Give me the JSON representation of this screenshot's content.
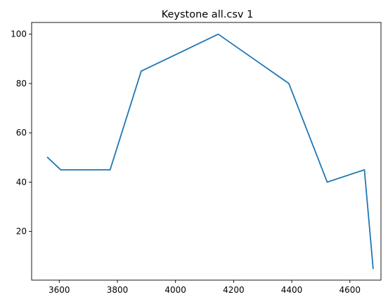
{
  "chart_data": {
    "type": "line",
    "title": "Keystone all.csv 1",
    "xlabel": "",
    "ylabel": "",
    "xlim": [
      3505,
      4707
    ],
    "ylim": [
      0.25,
      104.75
    ],
    "xticks": [
      3600,
      3800,
      4000,
      4200,
      4400,
      4600
    ],
    "yticks": [
      20,
      40,
      60,
      80,
      100
    ],
    "grid": false,
    "series": [
      {
        "name": "series-1",
        "color": "#1f77b4",
        "x": [
          3560,
          3605,
          3775,
          3882,
          4147,
          4390,
          4522,
          4650,
          4680
        ],
        "y": [
          50,
          45,
          45,
          85,
          100,
          80,
          40,
          45,
          5
        ]
      }
    ]
  }
}
